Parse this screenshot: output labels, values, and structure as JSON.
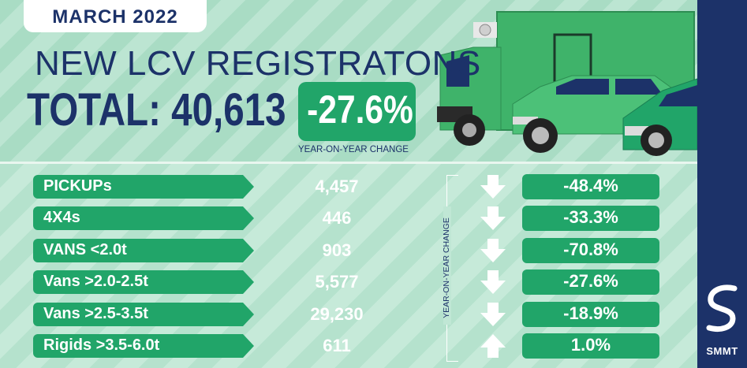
{
  "header": {
    "date": "MARCH 2022",
    "title": "NEW LCV REGISTRATONS",
    "total": "TOTAL: 40,613"
  },
  "yoy": {
    "value": "-27.6%",
    "label": "YEAR-ON-YEAR CHANGE"
  },
  "side_label": "YEAR-ON-YEAR CHANGE",
  "rows": [
    {
      "label": "PICKUPs",
      "value": "4,457",
      "change": "-48.4%",
      "direction": "down"
    },
    {
      "label": "4X4s",
      "value": "446",
      "change": "-33.3%",
      "direction": "down"
    },
    {
      "label": "VANS <2.0t",
      "value": "903",
      "change": "-70.8%",
      "direction": "down"
    },
    {
      "label": "Vans >2.0-2.5t",
      "value": "5,577",
      "change": "-27.6%",
      "direction": "down"
    },
    {
      "label": "Vans >2.5-3.5t",
      "value": "29,230",
      "change": "-18.9%",
      "direction": "down"
    },
    {
      "label": "Rigids >3.5-6.0t",
      "value": "611",
      "change": "1.0%",
      "direction": "up"
    }
  ],
  "brand": {
    "name": "SMMT",
    "navy": "#1c3269",
    "green": "#21a569"
  },
  "icons": [
    "down-arrow-icon",
    "up-arrow-icon",
    "smmt-logo",
    "truck-illustration",
    "pickup-illustration",
    "van-illustration"
  ]
}
